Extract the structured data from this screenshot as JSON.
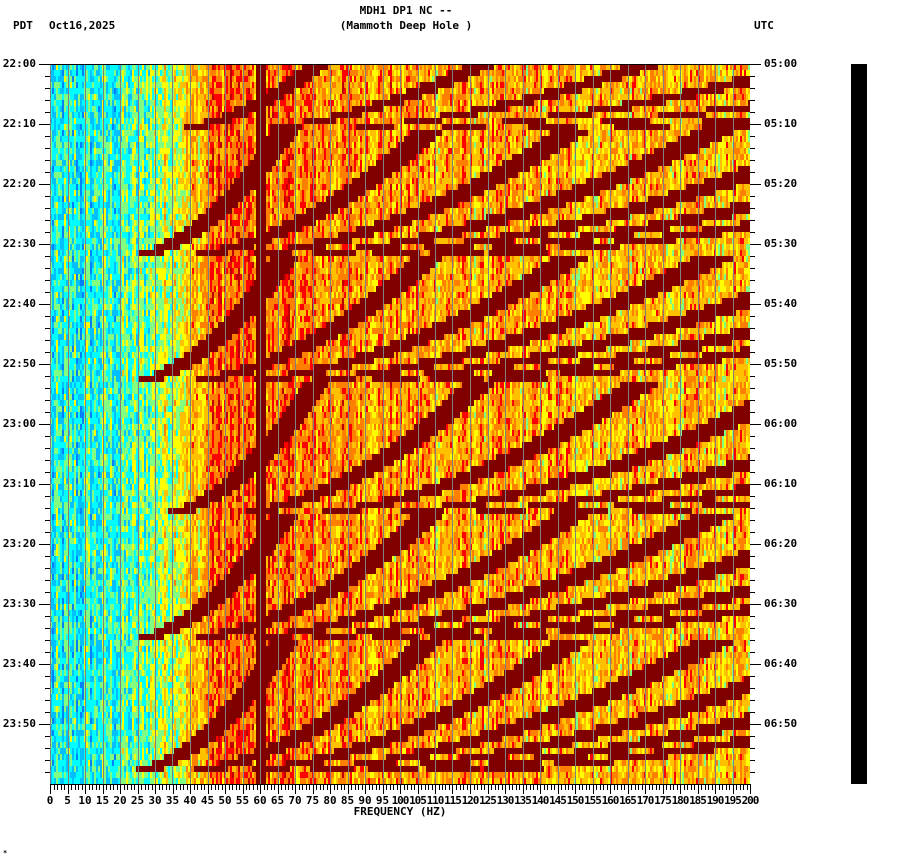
{
  "header": {
    "station_line": "MDH1 DP1 NC --",
    "site_name": "(Mammoth Deep Hole )",
    "left_timezone": "PDT",
    "date": "Oct16,2025",
    "right_timezone": "UTC"
  },
  "footer": {
    "mark": "*"
  },
  "colors": {
    "background": "#ffffff",
    "axis": "#000000",
    "grid": "#808080",
    "colormap": [
      "#0080ff",
      "#00c0ff",
      "#00ffff",
      "#80ff80",
      "#ffff00",
      "#ffc000",
      "#ff8000",
      "#ff0000",
      "#c00000",
      "#800000"
    ],
    "scale_bar": "#000000"
  },
  "chart_data": {
    "type": "heatmap",
    "title": "MDH1 DP1 NC -- (Mammoth Deep Hole )",
    "subtitle": "Oct16,2025",
    "xlabel": "FREQUENCY (HZ)",
    "ylabel_left": "PDT",
    "ylabel_right": "UTC",
    "xlim": [
      0,
      200
    ],
    "x_ticks": [
      0,
      5,
      10,
      15,
      20,
      25,
      30,
      35,
      40,
      45,
      50,
      55,
      60,
      65,
      70,
      75,
      80,
      85,
      90,
      95,
      100,
      105,
      110,
      115,
      120,
      125,
      130,
      135,
      140,
      145,
      150,
      155,
      160,
      165,
      170,
      175,
      180,
      185,
      190,
      195,
      200
    ],
    "x_minor_tick_step": 1,
    "y_range_pdt": [
      "22:00",
      "24:00"
    ],
    "y_ticks_left": [
      "22:00",
      "22:10",
      "22:20",
      "22:30",
      "22:40",
      "22:50",
      "23:00",
      "23:10",
      "23:20",
      "23:30",
      "23:40",
      "23:50"
    ],
    "y_ticks_right": [
      "05:00",
      "05:10",
      "05:20",
      "05:30",
      "05:40",
      "05:50",
      "06:00",
      "06:10",
      "06:20",
      "06:30",
      "06:40",
      "06:50"
    ],
    "y_minor_tick_minutes": 2,
    "grid": true,
    "grid_every_hz": 5,
    "legend": "none",
    "features": {
      "persistent_line_hz": 60,
      "low_freq_band": {
        "from_hz": 0,
        "to_hz": 30,
        "level": "low (blue/cyan)"
      },
      "mid_band": {
        "from_hz": 30,
        "to_hz": 130,
        "level": "high (red/dark red)"
      },
      "high_band": {
        "from_hz": 130,
        "to_hz": 200,
        "level": "medium (yellow/orange)"
      },
      "sweep_cycles_minutes_from_start": [
        {
          "start": 0,
          "end": 11,
          "base_hz_end": 30
        },
        {
          "start": 11,
          "end": 32,
          "base_hz_end": 20
        },
        {
          "start": 32,
          "end": 53,
          "base_hz_end": 20
        },
        {
          "start": 53,
          "end": 75,
          "base_hz_end": 30
        },
        {
          "start": 75,
          "end": 96,
          "base_hz_end": 20
        },
        {
          "start": 96,
          "end": 118,
          "base_hz_end": 20
        }
      ],
      "harmonics_per_cycle": 7
    }
  }
}
